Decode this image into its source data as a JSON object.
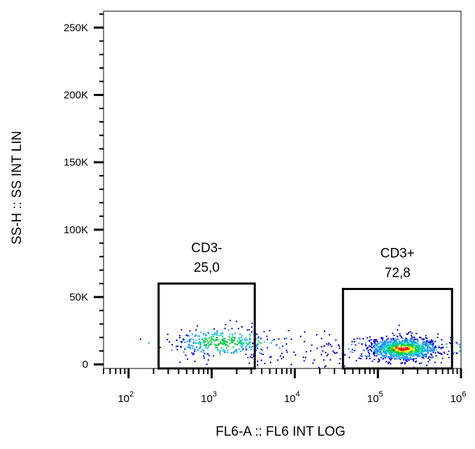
{
  "chart_data": {
    "type": "scatter",
    "subtype": "flow-cytometry-density-dot-plot",
    "xlabel": "FL6-A :: FL6 INT LOG",
    "ylabel": "SS-H :: SS INT LIN",
    "x_scale": "log",
    "x_range": [
      50,
      1000000
    ],
    "x_ticks": [
      {
        "base": "10",
        "exp": "2",
        "value": 100
      },
      {
        "base": "10",
        "exp": "3",
        "value": 1000
      },
      {
        "base": "10",
        "exp": "4",
        "value": 10000
      },
      {
        "base": "10",
        "exp": "5",
        "value": 100000
      },
      {
        "base": "10",
        "exp": "6",
        "value": 1000000
      }
    ],
    "y_scale": "linear",
    "y_range": [
      -3000,
      262144
    ],
    "y_ticks": [
      {
        "label": "0",
        "value": 0
      },
      {
        "label": "50K",
        "value": 50000
      },
      {
        "label": "100K",
        "value": 100000
      },
      {
        "label": "150K",
        "value": 150000
      },
      {
        "label": "200K",
        "value": 200000
      },
      {
        "label": "250K",
        "value": 250000
      }
    ],
    "density_colors": [
      "#0000cc",
      "#1e90ff",
      "#00c8c8",
      "#00cc44",
      "#f0f000",
      "#ff0000"
    ],
    "gates": [
      {
        "name": "CD3-",
        "value": "25,0",
        "x_min": 230,
        "x_max": 3300,
        "y_min": -3000,
        "y_max": 60000
      },
      {
        "name": "CD3+",
        "value": "72,8",
        "x_min": 38000,
        "x_max": 780000,
        "y_min": -3000,
        "y_max": 56000
      }
    ],
    "populations": [
      {
        "center_x": 1300,
        "center_y": 17000,
        "log_sd_x": 0.28,
        "sd_y": 5500,
        "share": 0.25
      },
      {
        "center_x": 200000,
        "center_y": 12000,
        "log_sd_x": 0.22,
        "sd_y": 4500,
        "share": 0.728
      }
    ]
  }
}
